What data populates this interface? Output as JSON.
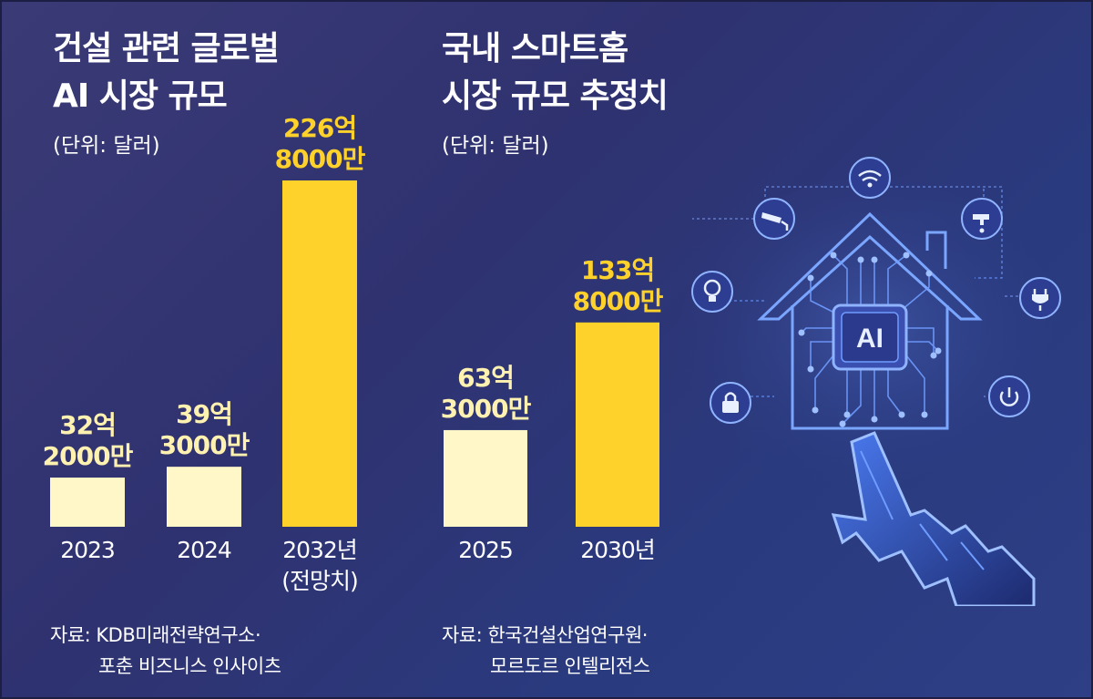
{
  "colors": {
    "background": "#333574",
    "bar_pale": "#fff7c8",
    "bar_yellow": "#ffd22b",
    "label_pale": "#fff2b0",
    "label_yellow": "#ffd22b",
    "circuit": "#6f9cff"
  },
  "chart_data": [
    {
      "type": "bar",
      "title_line1": "건설 관련 글로벌",
      "title_line2": "AI 시장 규모",
      "unit": "(단위: 달러)",
      "categories": [
        "2023",
        "2024",
        "2032년"
      ],
      "category_sublabels": [
        "",
        "",
        "(전망치)"
      ],
      "values": [
        3220000000,
        3930000000,
        22680000000
      ],
      "value_labels": [
        [
          "32억",
          "2000만"
        ],
        [
          "39억",
          "3000만"
        ],
        [
          "226억",
          "8000만"
        ]
      ],
      "highlight": [
        false,
        false,
        true
      ],
      "source_line1": "자료: KDB미래전략연구소·",
      "source_line2": "포춘 비즈니스 인사이츠"
    },
    {
      "type": "bar",
      "title_line1": "국내 스마트홈",
      "title_line2": "시장 규모 추정치",
      "unit": "(단위: 달러)",
      "categories": [
        "2025",
        "2030년"
      ],
      "category_sublabels": [
        "",
        ""
      ],
      "values": [
        6330000000,
        13380000000
      ],
      "value_labels": [
        [
          "63억",
          "3000만"
        ],
        [
          "133억",
          "8000만"
        ]
      ],
      "highlight": [
        false,
        true
      ],
      "source_line1": "자료: 한국건설산업연구원·",
      "source_line2": "모르도르 인텔리전스"
    }
  ],
  "illustration": {
    "chip_label": "AI",
    "icons": [
      "wifi-icon",
      "camera-icon",
      "faucet-icon",
      "lightbulb-icon",
      "plug-icon",
      "lock-icon",
      "power-icon",
      "hand-cursor-icon"
    ]
  }
}
